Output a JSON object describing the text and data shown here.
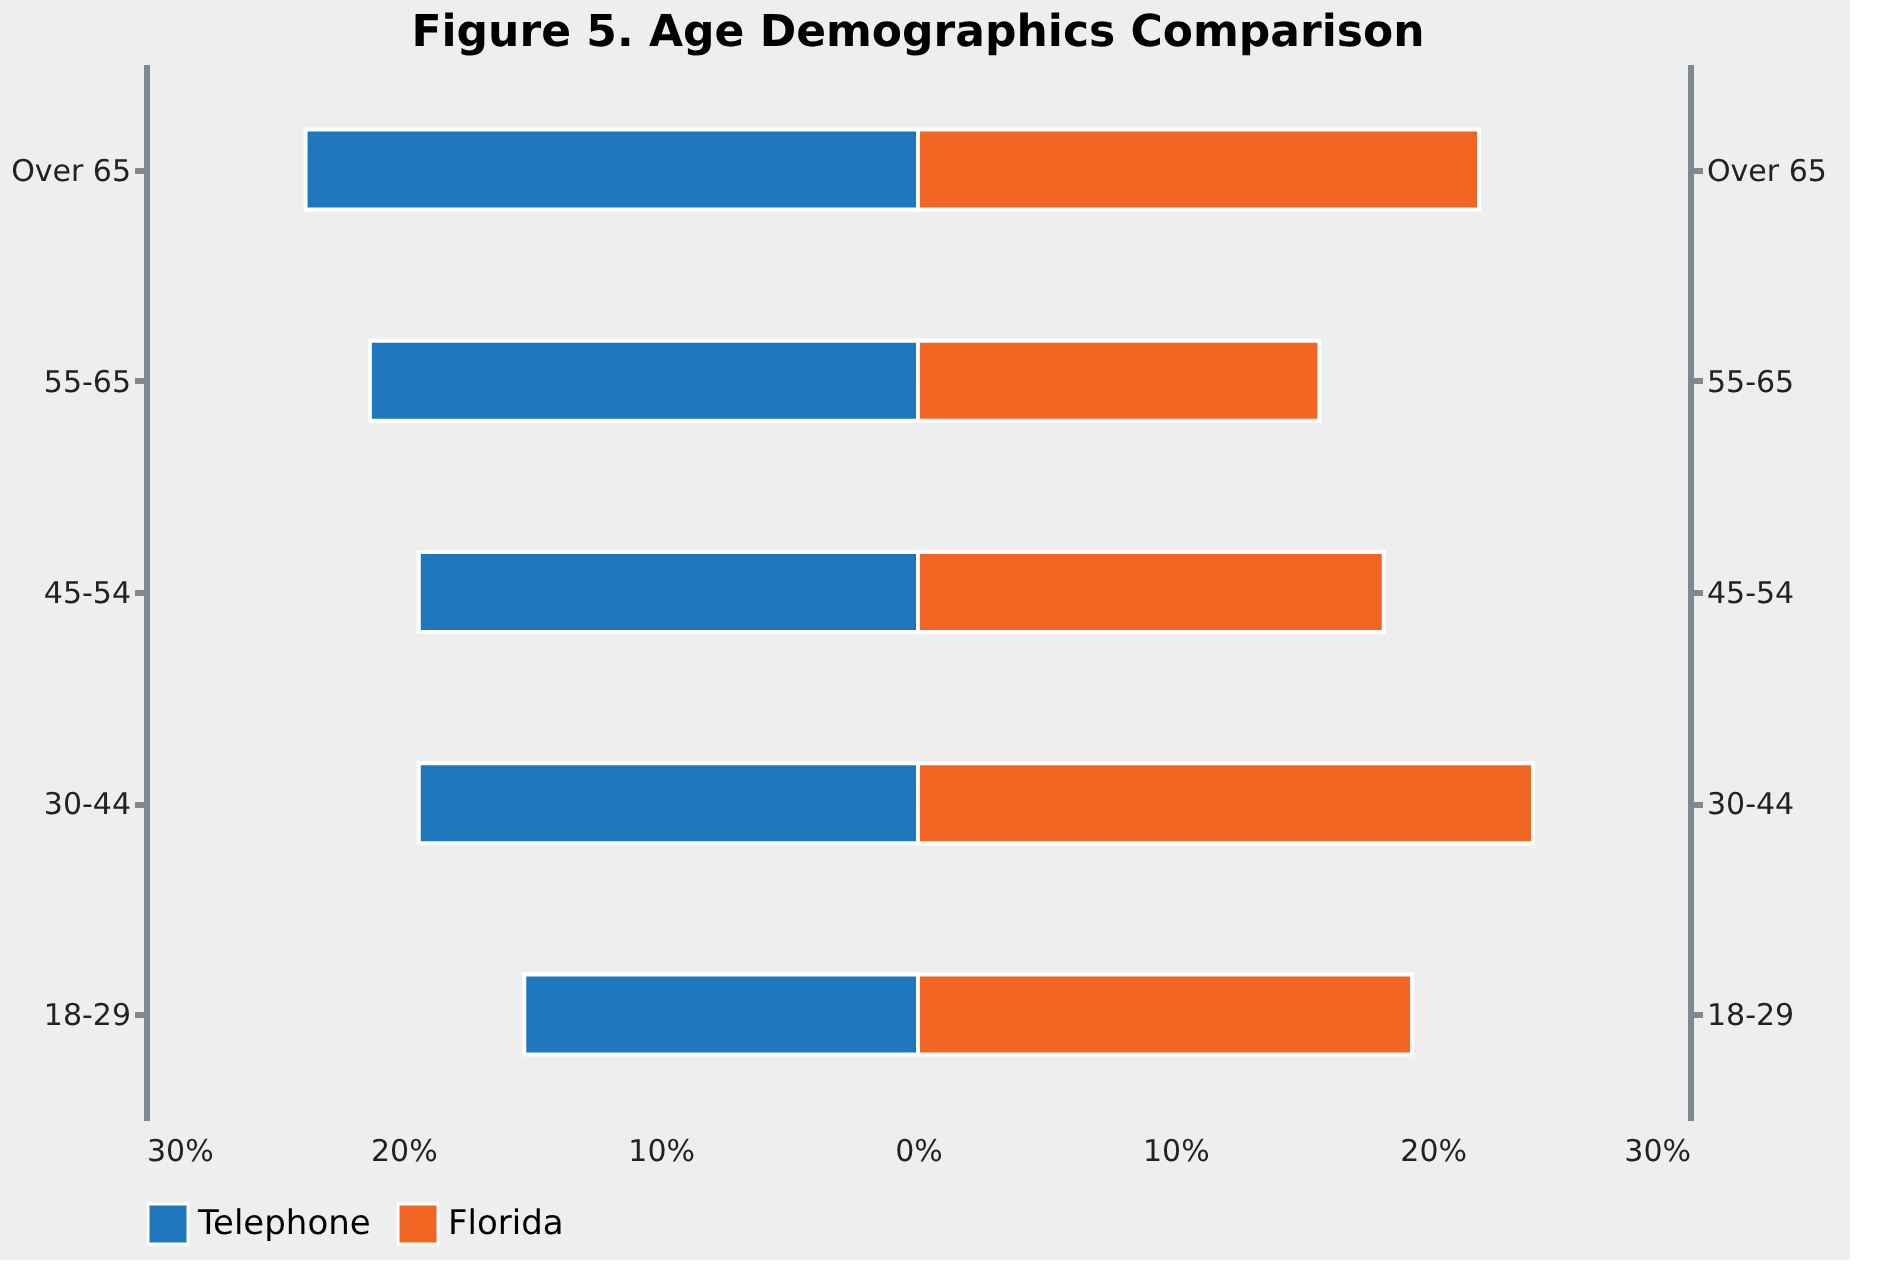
{
  "chart_data": {
    "type": "bar",
    "title": "Figure 5. Age Demographics Comparison",
    "orientation": "horizontal",
    "stacked": true,
    "categories": [
      "Over 65",
      "55-65",
      "45-54",
      "30-44",
      "18-29"
    ],
    "series": [
      {
        "name": "Telephone",
        "color": "#1f77bd",
        "values": [
          -23.8,
          -21.3,
          -19.4,
          -19.4,
          -15.3
        ]
      },
      {
        "name": "Florida",
        "color": "#f26522",
        "values": [
          21.8,
          15.6,
          18.1,
          23.9,
          19.2
        ]
      }
    ],
    "xlim": [
      -30,
      30
    ],
    "xticks": [
      {
        "value": -30,
        "label": "30%"
      },
      {
        "value": -20,
        "label": "20%"
      },
      {
        "value": -10,
        "label": "10%"
      },
      {
        "value": 0,
        "label": "0%"
      },
      {
        "value": 10,
        "label": "10%"
      },
      {
        "value": 20,
        "label": "20%"
      },
      {
        "value": 30,
        "label": "30%"
      }
    ],
    "y2_categories": [
      "Over 65",
      "55-65",
      "45-54",
      "30-44",
      "18-29"
    ],
    "grid": false,
    "legend": "bottom"
  }
}
